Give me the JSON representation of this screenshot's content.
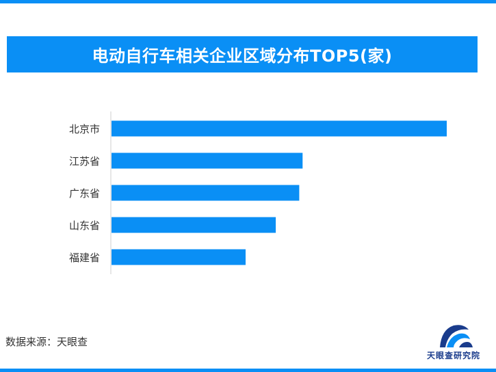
{
  "title": "电动自行车相关企业区域分布TOP5(家)",
  "source": "数据来源：天眼查",
  "logo_text": "天眼查研究院",
  "colors": {
    "accent": "#0a8ff5",
    "bar": "#0a8ff5",
    "axis": "#cccccc",
    "label": "#333333"
  },
  "chart_data": {
    "type": "bar",
    "orientation": "horizontal",
    "categories": [
      "北京市",
      "江苏省",
      "广东省",
      "山东省",
      "福建省"
    ],
    "values": [
      100,
      57,
      56,
      49,
      40
    ],
    "title": "电动自行车相关企业区域分布TOP5(家)",
    "xlabel": "",
    "ylabel": "",
    "xlim": [
      0,
      100
    ],
    "grid": false,
    "legend": "none",
    "data_labels": false
  }
}
